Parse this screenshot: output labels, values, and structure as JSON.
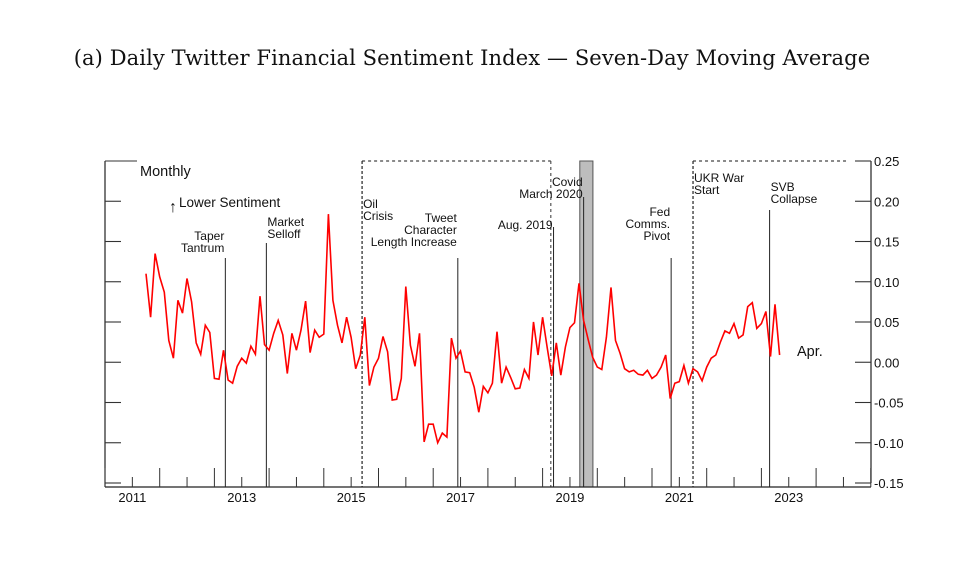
{
  "chart_data": {
    "type": "line",
    "title": "(a) Daily Twitter Financial Sentiment Index — Seven-Day Moving Average",
    "frequency_label": "Monthly",
    "direction_label": "Lower Sentiment",
    "end_label": "Apr.",
    "xlabel": "",
    "ylabel": "",
    "xlim": [
      2011,
      2024.6
    ],
    "ylim": [
      -0.15,
      0.25
    ],
    "x_tick_labels": [
      "2011",
      "2013",
      "2015",
      "2017",
      "2019",
      "2021",
      "2023"
    ],
    "y_tick_labels": [
      "0.25",
      "0.20",
      "0.15",
      "0.10",
      "0.05",
      "0.00",
      "-0.05",
      "-0.10",
      "-0.15"
    ],
    "y_ticks": [
      0.25,
      0.2,
      0.15,
      0.1,
      0.05,
      0.0,
      -0.05,
      -0.1,
      -0.15
    ],
    "series_color": "#ff0000",
    "series": [
      {
        "name": "Sentiment Index (monthly)",
        "x_start": 2011.75,
        "x_step": 0.08333,
        "values": [
          0.11,
          0.056,
          0.135,
          0.106,
          0.087,
          0.027,
          0.005,
          0.077,
          0.061,
          0.104,
          0.075,
          0.024,
          0.01,
          0.046,
          0.037,
          -0.02,
          -0.021,
          0.015,
          -0.022,
          -0.026,
          -0.005,
          0.005,
          -0.001,
          0.02,
          0.01,
          0.082,
          0.022,
          0.015,
          0.036,
          0.052,
          0.034,
          -0.014,
          0.036,
          0.015,
          0.04,
          0.076,
          0.012,
          0.04,
          0.031,
          0.035,
          0.184,
          0.077,
          0.046,
          0.024,
          0.056,
          0.031,
          -0.008,
          0.009,
          0.056,
          -0.029,
          -0.006,
          0.005,
          0.032,
          0.013,
          -0.047,
          -0.046,
          -0.02,
          0.094,
          0.021,
          -0.005,
          0.036,
          -0.099,
          -0.077,
          -0.077,
          -0.1,
          -0.088,
          -0.093,
          0.03,
          0.005,
          0.014,
          -0.012,
          -0.013,
          -0.031,
          -0.062,
          -0.03,
          -0.038,
          -0.026,
          0.038,
          -0.026,
          -0.006,
          -0.019,
          -0.033,
          -0.032,
          -0.009,
          -0.02,
          0.05,
          0.009,
          0.056,
          0.019,
          -0.017,
          0.024,
          -0.016,
          0.019,
          0.043,
          0.049,
          0.098,
          0.052,
          0.028,
          0.006,
          -0.006,
          -0.009,
          0.031,
          0.093,
          0.027,
          0.011,
          -0.008,
          -0.012,
          -0.01,
          -0.015,
          -0.016,
          -0.01,
          -0.02,
          -0.016,
          -0.006,
          0.009,
          -0.045,
          -0.026,
          -0.024,
          -0.004,
          -0.026,
          -0.008,
          -0.012,
          -0.023,
          -0.006,
          0.005,
          0.009,
          0.025,
          0.039,
          0.036,
          0.048,
          0.03,
          0.034,
          0.069,
          0.074,
          0.042,
          0.048,
          0.063,
          0.007,
          0.072,
          0.009
        ]
      }
    ],
    "events": [
      {
        "label_lines": [
          "Taper",
          "Tantrum"
        ],
        "x": 2013.2,
        "align": "right",
        "style": "solid"
      },
      {
        "label_lines": [
          "Market",
          "Selloff"
        ],
        "x": 2013.95,
        "align": "left",
        "style": "solid"
      },
      {
        "label_lines": [
          "Oil",
          "Crisis"
        ],
        "x": 2015.7,
        "align": "left",
        "style": "dashed-start"
      },
      {
        "label_lines": [
          "Tweet",
          "Character",
          "Length Increase"
        ],
        "x": 2017.45,
        "align": "right",
        "style": "solid"
      },
      {
        "label_lines": [
          "Aug. 2019"
        ],
        "x": 2019.2,
        "align": "right",
        "style": "solid"
      },
      {
        "label_lines": [
          "Covid",
          "March 2020"
        ],
        "x": 2019.75,
        "align": "right",
        "style": "solid"
      },
      {
        "label_lines": [
          "Fed",
          "Comms.",
          "Pivot"
        ],
        "x": 2021.35,
        "align": "right",
        "style": "solid"
      },
      {
        "label_lines": [
          "UKR War",
          "Start"
        ],
        "x": 2021.75,
        "align": "left",
        "style": "dashed-start"
      },
      {
        "label_lines": [
          "SVB",
          "Collapse"
        ],
        "x": 2023.15,
        "align": "left",
        "style": "solid"
      }
    ],
    "dashed_regions": [
      {
        "name": "Oil Crisis to Covid",
        "x_start": 2015.7,
        "x_end": 2019.15
      },
      {
        "name": "UKR War onward",
        "x_start": 2021.75,
        "x_end": 2024.55
      }
    ],
    "shaded_regions": [
      {
        "name": "Covid",
        "x_start": 2019.68,
        "x_end": 2019.92,
        "color": "#bdbdbd"
      }
    ],
    "grid": false,
    "legend": "none"
  }
}
